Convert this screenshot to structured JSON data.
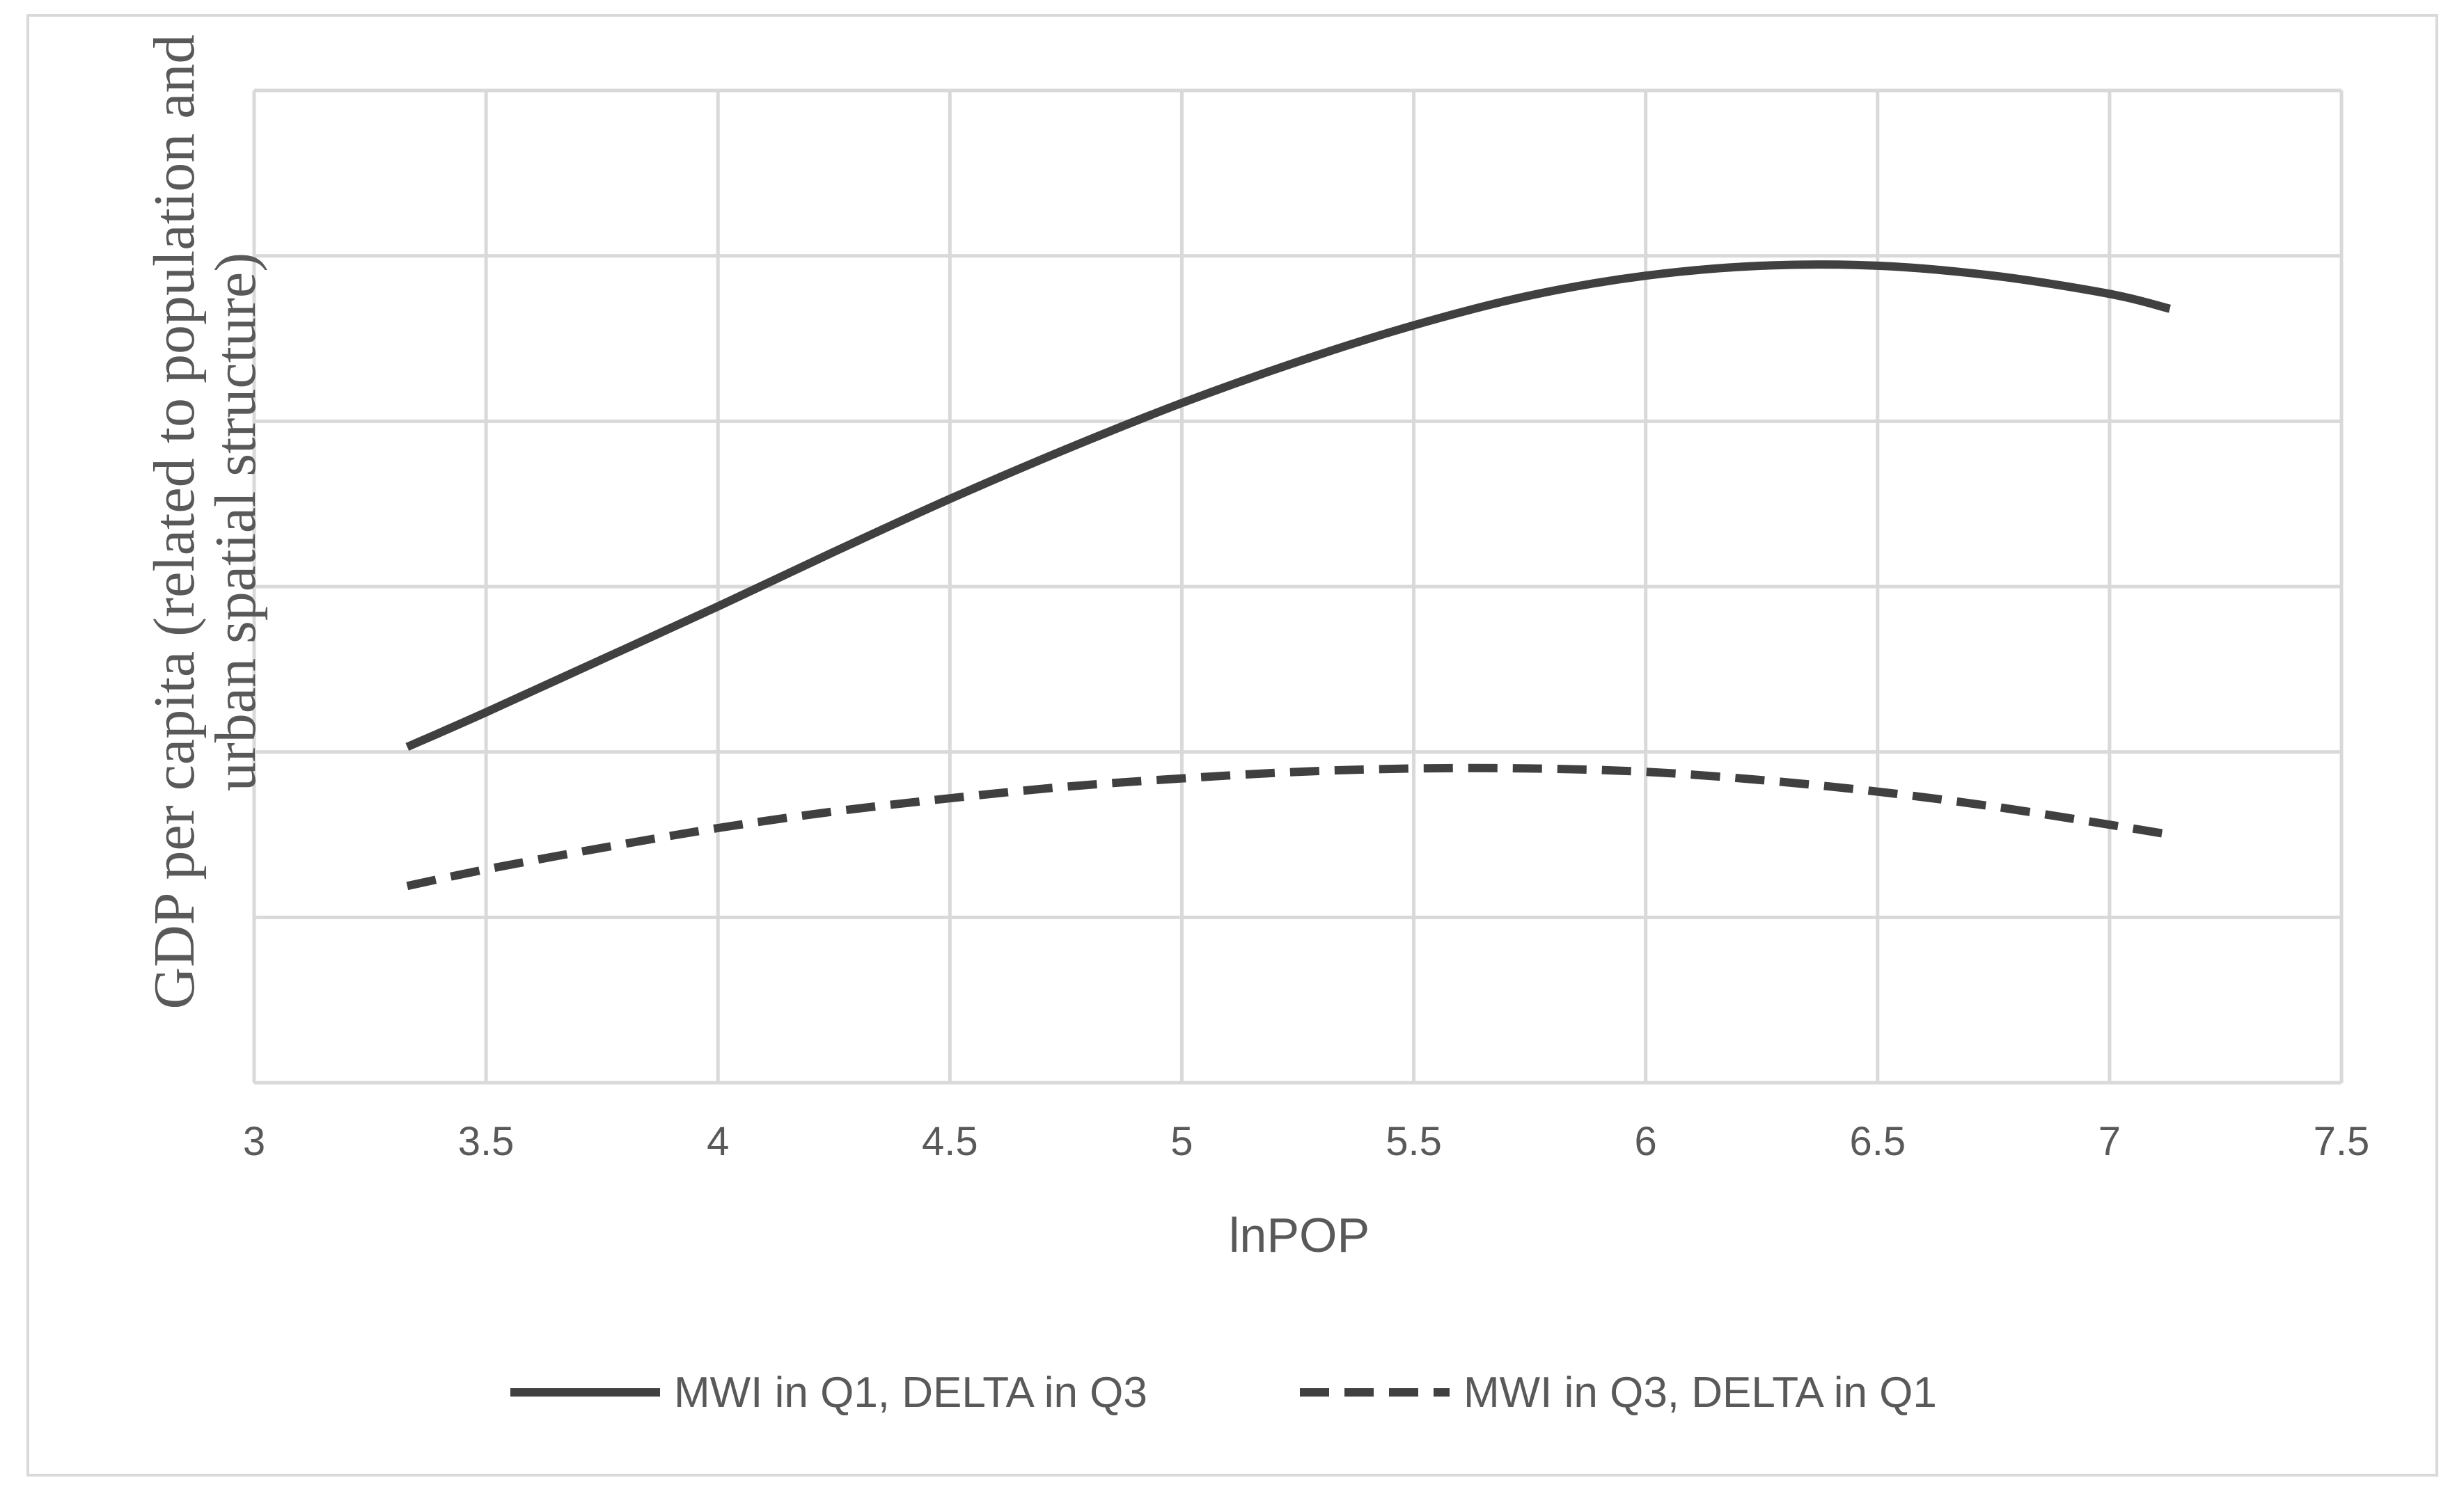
{
  "chart_data": {
    "type": "line",
    "title": "",
    "xlabel": "lnPOP",
    "ylabel_lines": [
      "GDP per capita (related to population and",
      "urban spatial structure)"
    ],
    "xlim": [
      3,
      7.5
    ],
    "ylim": [
      0,
      6
    ],
    "x_ticks": [
      "3",
      "3.5",
      "4",
      "4.5",
      "5",
      "5.5",
      "6",
      "6.5",
      "7",
      "7.5"
    ],
    "y_tick_labels_shown": false,
    "grid": true,
    "legend_position": "bottom",
    "series": [
      {
        "name": "MWI in Q1, DELTA in Q3",
        "style": "solid",
        "color": "#404040",
        "x": [
          3.33,
          3.5,
          3.75,
          4.0,
          4.25,
          4.5,
          4.75,
          5.0,
          5.25,
          5.5,
          5.75,
          6.0,
          6.25,
          6.5,
          6.75,
          7.0,
          7.13
        ],
        "y": [
          2.03,
          2.24,
          2.56,
          2.88,
          3.21,
          3.53,
          3.83,
          4.11,
          4.36,
          4.58,
          4.76,
          4.88,
          4.94,
          4.94,
          4.88,
          4.77,
          4.68
        ]
      },
      {
        "name": "MWI in Q3, DELTA in Q1",
        "style": "dashed",
        "color": "#404040",
        "x": [
          3.33,
          3.5,
          3.75,
          4.0,
          4.25,
          4.5,
          4.75,
          5.0,
          5.25,
          5.5,
          5.75,
          6.0,
          6.25,
          6.5,
          6.75,
          7.0,
          7.13
        ],
        "y": [
          1.19,
          1.29,
          1.42,
          1.54,
          1.64,
          1.72,
          1.79,
          1.84,
          1.88,
          1.9,
          1.9,
          1.88,
          1.83,
          1.76,
          1.67,
          1.56,
          1.5
        ]
      }
    ]
  }
}
